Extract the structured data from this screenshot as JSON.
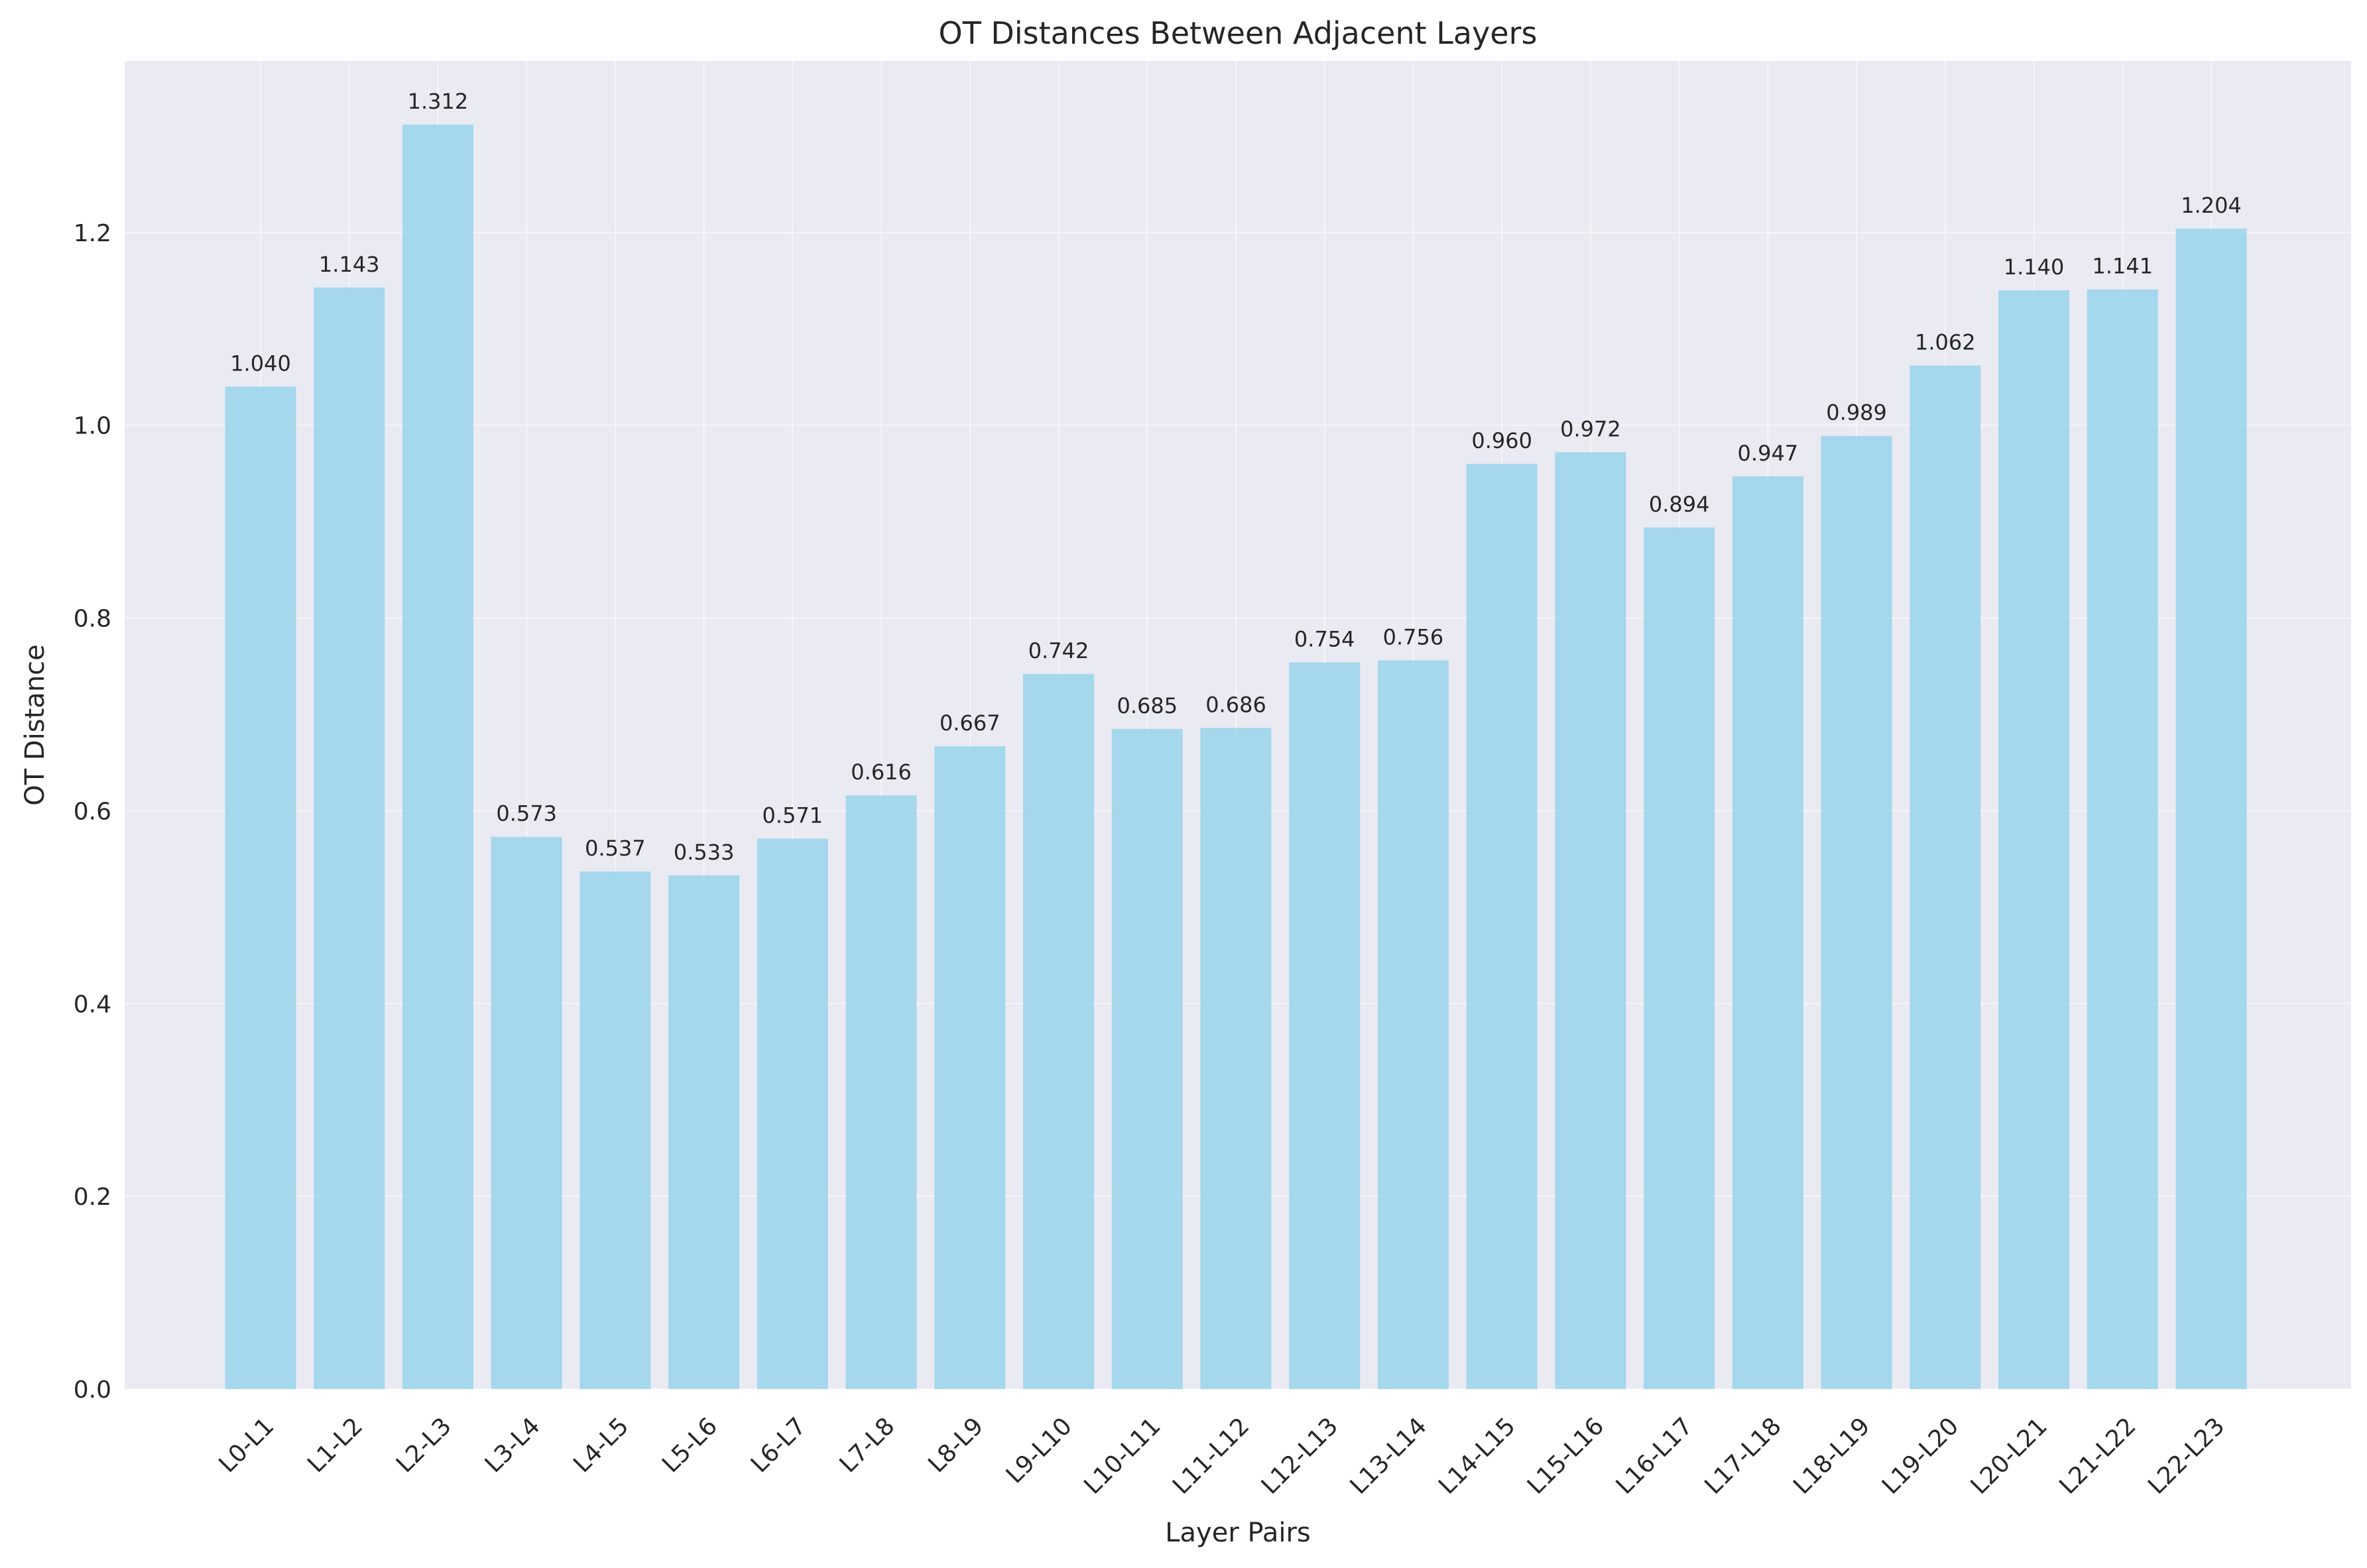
{
  "chart_data": {
    "type": "bar",
    "title": "OT Distances Between Adjacent Layers",
    "xlabel": "Layer Pairs",
    "ylabel": "OT Distance",
    "ylim": [
      0,
      1.378
    ],
    "yticks": [
      "0.0",
      "0.2",
      "0.4",
      "0.6",
      "0.8",
      "1.0",
      "1.2"
    ],
    "grid": true,
    "legend": "none",
    "categories": [
      "L0-L1",
      "L1-L2",
      "L2-L3",
      "L3-L4",
      "L4-L5",
      "L5-L6",
      "L6-L7",
      "L7-L8",
      "L8-L9",
      "L9-L10",
      "L10-L11",
      "L11-L12",
      "L12-L13",
      "L13-L14",
      "L14-L15",
      "L15-L16",
      "L16-L17",
      "L17-L18",
      "L18-L19",
      "L19-L20",
      "L20-L21",
      "L21-L22",
      "L22-L23"
    ],
    "values": [
      1.04,
      1.143,
      1.312,
      0.573,
      0.537,
      0.533,
      0.571,
      0.616,
      0.667,
      0.742,
      0.685,
      0.686,
      0.754,
      0.756,
      0.96,
      0.972,
      0.894,
      0.947,
      0.989,
      1.062,
      1.14,
      1.141,
      1.204
    ],
    "value_labels": [
      "1.040",
      "1.143",
      "1.312",
      "0.573",
      "0.537",
      "0.533",
      "0.571",
      "0.616",
      "0.667",
      "0.742",
      "0.685",
      "0.686",
      "0.754",
      "0.756",
      "0.960",
      "0.972",
      "0.894",
      "0.947",
      "0.989",
      "1.062",
      "1.140",
      "1.141",
      "1.204"
    ],
    "colors": {
      "bar": "#87ceeb",
      "plot_background": "#eaeaf2",
      "grid": "#ffffff",
      "text": "#262626"
    }
  }
}
